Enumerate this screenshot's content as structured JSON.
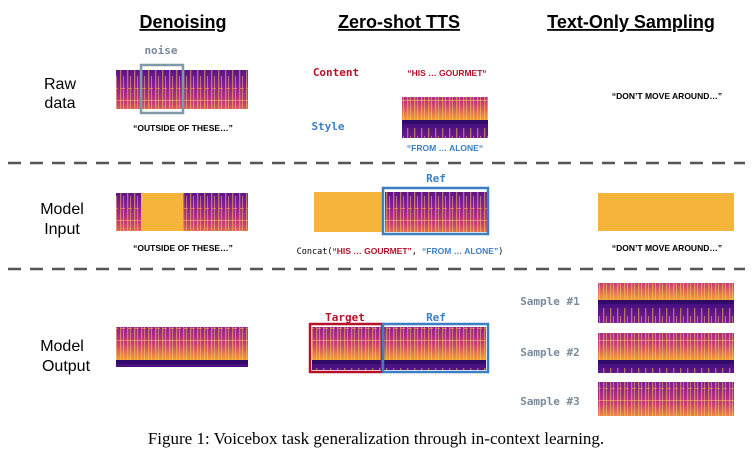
{
  "columns": {
    "denoising": "Denoising",
    "zero_shot": "Zero-shot TTS",
    "text_only": "Text-Only Sampling"
  },
  "rows": {
    "raw_1": "Raw",
    "raw_2": "data",
    "input_1": "Model",
    "input_2": "Input",
    "output_1": "Model",
    "output_2": "Output"
  },
  "raw": {
    "noise_label": "noise",
    "denoise_text": "“OUTSIDE OF THESE…”",
    "content_label": "Content",
    "content_text": "“HIS … GOURMET“",
    "style_label": "Style",
    "style_text": "“FROM … ALONE“",
    "text_only_text": "“DON’T MOVE AROUND…”"
  },
  "input": {
    "denoise_text": "“OUTSIDE OF THESE…”",
    "ref_label": "Ref",
    "concat_prefix": "Concat(",
    "concat_a": "“HIS … GOURMET”",
    "concat_sep": ", ",
    "concat_b": "“FROM … ALONE”",
    "concat_suffix": ")",
    "text_only_text": "“DON’T MOVE AROUND…”"
  },
  "output": {
    "target_label": "Target",
    "ref_label": "Ref",
    "sample1": "Sample #1",
    "sample2": "Sample #2",
    "sample3": "Sample #3"
  },
  "caption": "Figure 1: Voicebox task generalization through in-context learning.",
  "colors": {
    "spec_dark": "#2a0a6e",
    "spec_mid": "#9a1f8c",
    "spec_hot": "#f0a23a",
    "mask": "#f7b43a",
    "noise_box": "#7f9aa6",
    "red": "#b3122a",
    "blue": "#3b7fc4"
  }
}
